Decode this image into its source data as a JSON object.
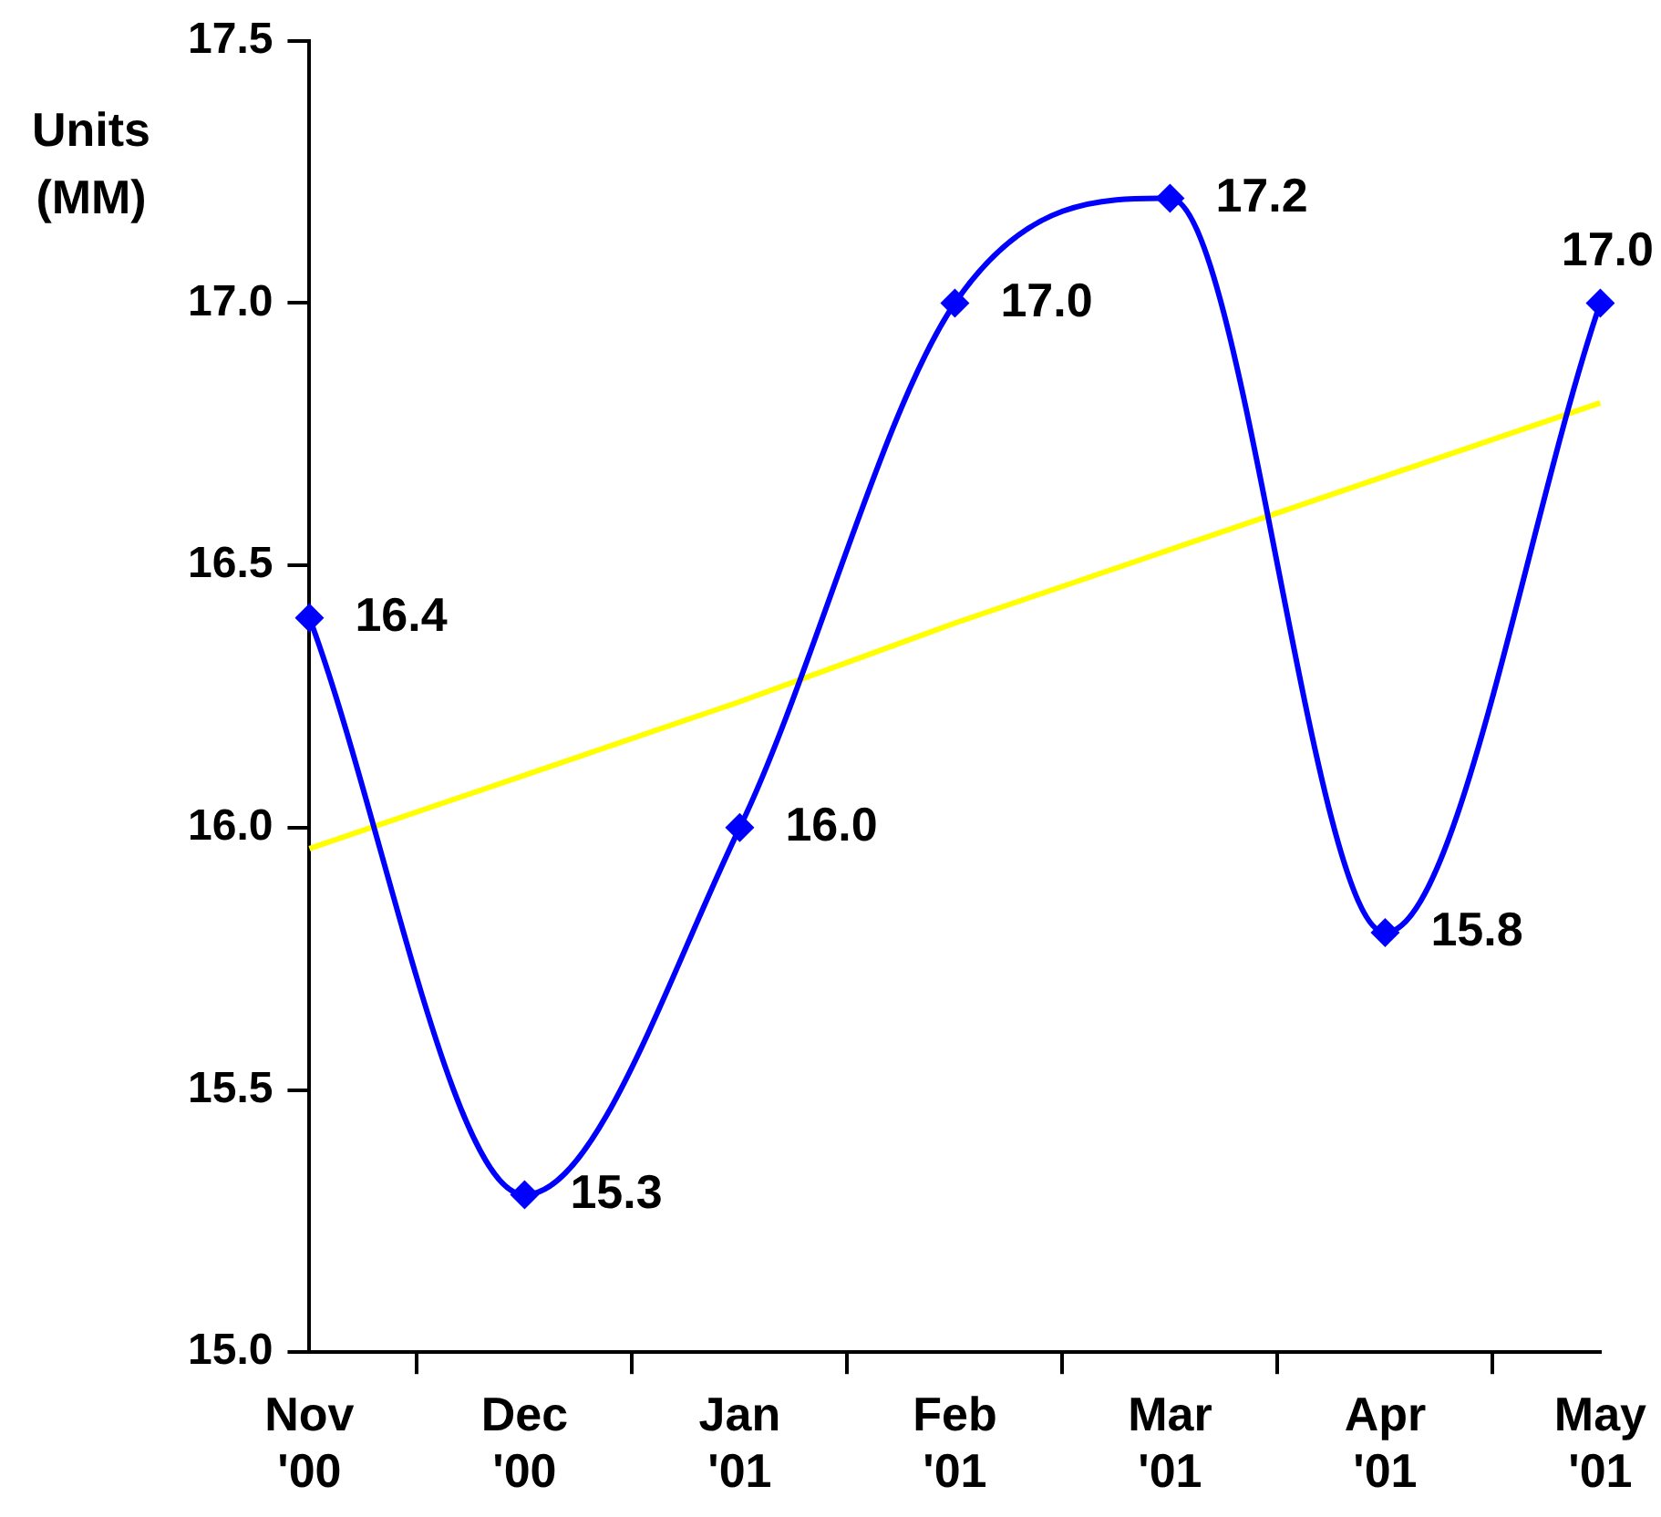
{
  "chart_data": {
    "type": "line",
    "ylabel": "Units (MM)",
    "categories": [
      "Nov '00",
      "Dec '00",
      "Jan '01",
      "Feb '01",
      "Mar '01",
      "Apr '01",
      "May '01"
    ],
    "series": [
      {
        "color": "#0000ff",
        "values": [
          16.4,
          15.3,
          16.0,
          17.0,
          17.2,
          15.8,
          17.0
        ],
        "value_labels": [
          "16.4",
          "15.3",
          "16.0",
          "17.0",
          "17.2",
          "15.8",
          "17.0"
        ],
        "marker": "diamond"
      },
      {
        "color": "#ffff00",
        "values": [
          15.96,
          16.1,
          16.24,
          16.39,
          16.53,
          16.67,
          16.81
        ],
        "marker": "none"
      }
    ],
    "ylim": [
      15.0,
      17.5
    ],
    "yticks": [
      {
        "value": 15.0,
        "label": "15.0"
      },
      {
        "value": 15.5,
        "label": "15.5"
      },
      {
        "value": 16.0,
        "label": "16.0"
      },
      {
        "value": 16.5,
        "label": "16.5"
      },
      {
        "value": 17.0,
        "label": "17.0"
      },
      {
        "value": 17.5,
        "label": "17.5"
      }
    ],
    "grid": false,
    "legend": false,
    "line_style": "solid"
  }
}
